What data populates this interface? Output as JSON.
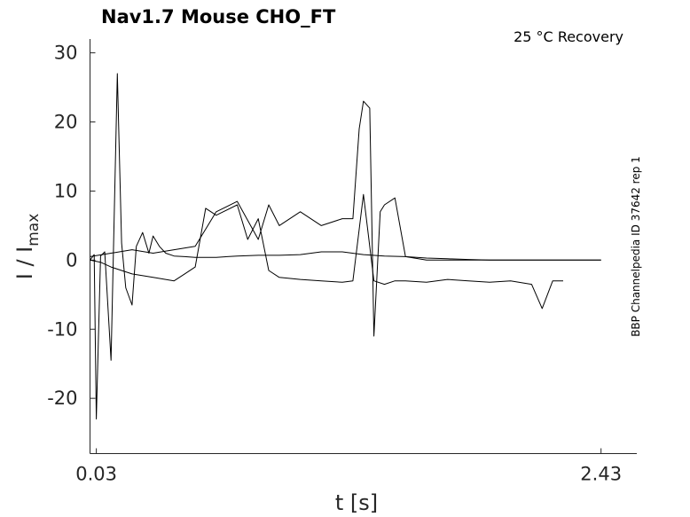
{
  "chart_data": {
    "type": "line",
    "title": "Nav1.7  Mouse  CHO_FT",
    "subtitle": "25 °C  Recovery",
    "side_label": "BBP Channelpedia ID 37642 rep 1",
    "xlabel": "t [s]",
    "ylabel_main": "I / I",
    "ylabel_sub": "max",
    "xlim": [
      0,
      2.6
    ],
    "ylim": [
      -28,
      32
    ],
    "xticks": [
      {
        "value": 0.03,
        "label": "0.03"
      },
      {
        "value": 2.43,
        "label": "2.43"
      }
    ],
    "yticks": [
      {
        "value": 30,
        "label": "30"
      },
      {
        "value": 20,
        "label": "20"
      },
      {
        "value": 10,
        "label": "10"
      },
      {
        "value": 0,
        "label": "0"
      },
      {
        "value": -10,
        "label": "-10"
      },
      {
        "value": -20,
        "label": "-20"
      }
    ],
    "series": [
      {
        "x": [
          0.0,
          0.02,
          0.03,
          0.05,
          0.07,
          0.1,
          0.13,
          0.15,
          0.17,
          0.2,
          0.22,
          0.25,
          0.28,
          0.3,
          0.33,
          0.36,
          0.4,
          0.45,
          0.5,
          0.6,
          0.7,
          0.8,
          0.9,
          1.0,
          1.1,
          1.2,
          1.3,
          1.4,
          1.5,
          1.6,
          1.7,
          1.8,
          1.9,
          2.0,
          2.1,
          2.2,
          2.3,
          2.4,
          2.43
        ],
        "y": [
          0.0,
          0.8,
          -23.0,
          0.6,
          1.2,
          -14.5,
          27.0,
          2.5,
          -4.0,
          -6.5,
          2.0,
          4.0,
          1.0,
          3.5,
          2.0,
          1.0,
          0.6,
          0.5,
          0.4,
          0.4,
          0.6,
          0.7,
          0.7,
          0.8,
          1.2,
          1.2,
          0.8,
          0.6,
          0.5,
          0.3,
          0.2,
          0.1,
          0.0,
          0.0,
          0.0,
          0.0,
          0.0,
          0.0,
          0.0
        ]
      },
      {
        "x": [
          0.0,
          0.05,
          0.1,
          0.15,
          0.2,
          0.3,
          0.4,
          0.45,
          0.5,
          0.55,
          0.6,
          0.7,
          0.75,
          0.8,
          0.85,
          0.9,
          1.0,
          1.1,
          1.2,
          1.25,
          1.3,
          1.35,
          1.4,
          1.45,
          1.5,
          1.6,
          1.7,
          1.8,
          1.9,
          2.0,
          2.1,
          2.15,
          2.2,
          2.25
        ],
        "y": [
          0.0,
          -0.3,
          -1.0,
          -1.5,
          -2.0,
          -2.5,
          -3.0,
          -2.0,
          -1.0,
          7.5,
          6.5,
          8.0,
          3.0,
          6.0,
          -1.5,
          -2.5,
          -2.8,
          -3.0,
          -3.2,
          -3.0,
          9.5,
          -3.0,
          -3.5,
          -3.0,
          -3.0,
          -3.2,
          -2.8,
          -3.0,
          -3.2,
          -3.0,
          -3.5,
          -7.0,
          -3.0,
          -3.0
        ]
      },
      {
        "x": [
          0.0,
          0.1,
          0.2,
          0.3,
          0.4,
          0.5,
          0.6,
          0.7,
          0.8,
          0.85,
          0.9,
          1.0,
          1.1,
          1.2,
          1.25,
          1.28,
          1.3,
          1.33,
          1.35,
          1.38,
          1.4,
          1.45,
          1.5,
          1.6,
          1.7,
          1.8,
          1.9,
          2.0,
          2.1,
          2.2,
          2.3,
          2.4,
          2.43
        ],
        "y": [
          0.5,
          1.0,
          1.5,
          1.0,
          1.5,
          2.0,
          7.0,
          8.5,
          3.0,
          8.0,
          5.0,
          7.0,
          5.0,
          6.0,
          6.0,
          19.0,
          23.0,
          22.0,
          -11.0,
          7.0,
          8.0,
          9.0,
          0.5,
          0.0,
          0.0,
          0.0,
          0.0,
          0.0,
          0.0,
          0.0,
          0.0,
          0.0,
          0.0
        ]
      }
    ]
  }
}
